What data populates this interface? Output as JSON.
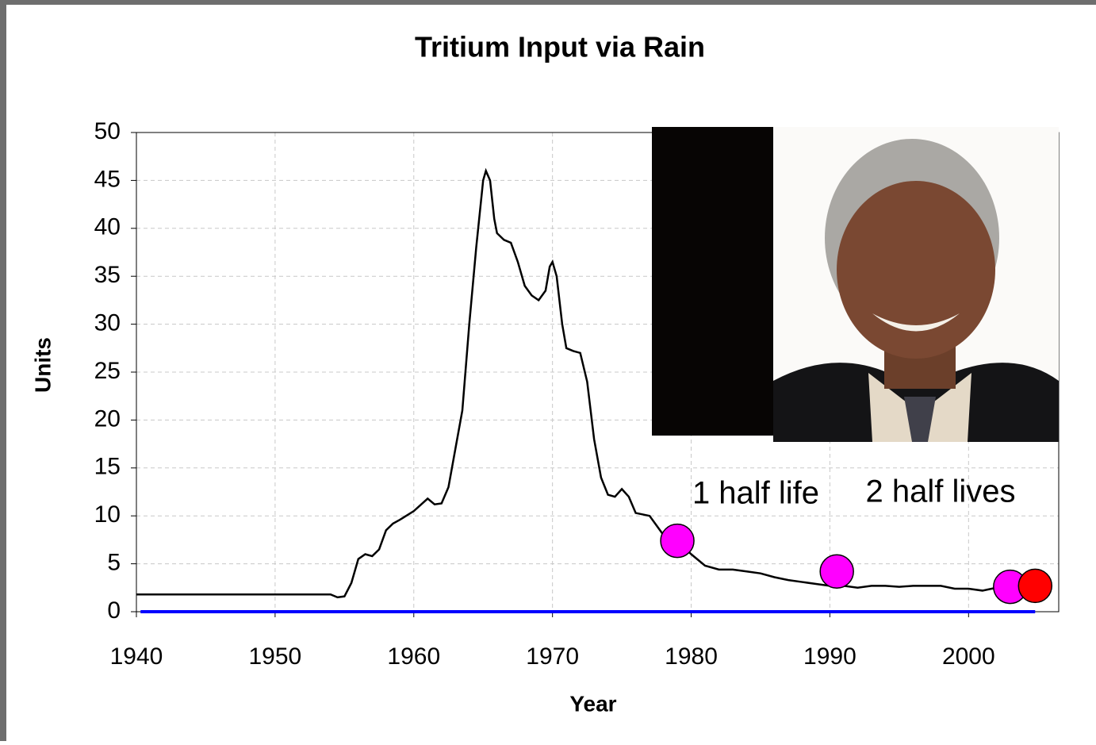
{
  "chart_data": {
    "type": "line",
    "title": "Tritium Input via Rain",
    "x_label": "Year",
    "y_label": "Units",
    "xlim": [
      1940,
      2006.5
    ],
    "ylim": [
      0,
      50
    ],
    "xticks": [
      1940,
      1950,
      1960,
      1970,
      1980,
      1990,
      2000
    ],
    "yticks": [
      0,
      5,
      10,
      15,
      20,
      25,
      30,
      35,
      40,
      45,
      50
    ],
    "grid": true,
    "annotations": [
      "1 half life",
      "2 half lives"
    ],
    "series": [
      {
        "style": "line",
        "color": "#000000",
        "x": [
          1940,
          1954,
          1954.5,
          1955,
          1955.5,
          1956,
          1956.5,
          1957,
          1957.5,
          1958,
          1958.5,
          1959,
          1960,
          1961,
          1961.5,
          1962,
          1962.5,
          1963,
          1963.5,
          1964,
          1964.5,
          1965,
          1965.2,
          1965.5,
          1965.8,
          1966,
          1966.5,
          1967,
          1967.5,
          1968,
          1968.5,
          1969,
          1969.5,
          1969.8,
          1970,
          1970.3,
          1970.7,
          1971,
          1971.5,
          1972,
          1972.5,
          1973,
          1973.5,
          1974,
          1974.5,
          1975,
          1975.5,
          1976,
          1977,
          1977.5,
          1978,
          1979,
          1980,
          1981,
          1982,
          1983,
          1984,
          1985,
          1986,
          1987,
          1988,
          1989,
          1990,
          1991,
          1992,
          1993,
          1994,
          1995,
          1996,
          1997,
          1998,
          1999,
          2000,
          2001,
          2002,
          2003
        ],
        "values": [
          1.8,
          1.8,
          1.5,
          1.6,
          3,
          5.5,
          6,
          5.8,
          6.5,
          8.5,
          9.2,
          9.6,
          10.5,
          11.8,
          11.2,
          11.3,
          13,
          17,
          21,
          30,
          38,
          45,
          46,
          45,
          41,
          39.5,
          38.8,
          38.5,
          36.5,
          34,
          33,
          32.5,
          33.5,
          36,
          36.5,
          35,
          30,
          27.5,
          27.2,
          27,
          24,
          18,
          14,
          12.2,
          12,
          12.8,
          12,
          10.3,
          10,
          9,
          8,
          7.4,
          6,
          4.8,
          4.4,
          4.4,
          4.2,
          4,
          3.6,
          3.3,
          3.1,
          2.9,
          2.7,
          2.7,
          2.5,
          2.7,
          2.7,
          2.6,
          2.7,
          2.7,
          2.7,
          2.4,
          2.4,
          2.2,
          2.5,
          2.6
        ]
      },
      {
        "style": "line",
        "color": "#0000ff",
        "x": [
          1940.3,
          2004.8
        ],
        "values": [
          0,
          0
        ]
      },
      {
        "style": "markers",
        "color": "#ff00ff",
        "x": [
          1979,
          1990.5,
          2003
        ],
        "values": [
          7.4,
          4.2,
          2.6
        ]
      },
      {
        "style": "markers",
        "color": "#ff0000",
        "x": [
          2004.8
        ],
        "values": [
          2.7
        ]
      }
    ]
  }
}
